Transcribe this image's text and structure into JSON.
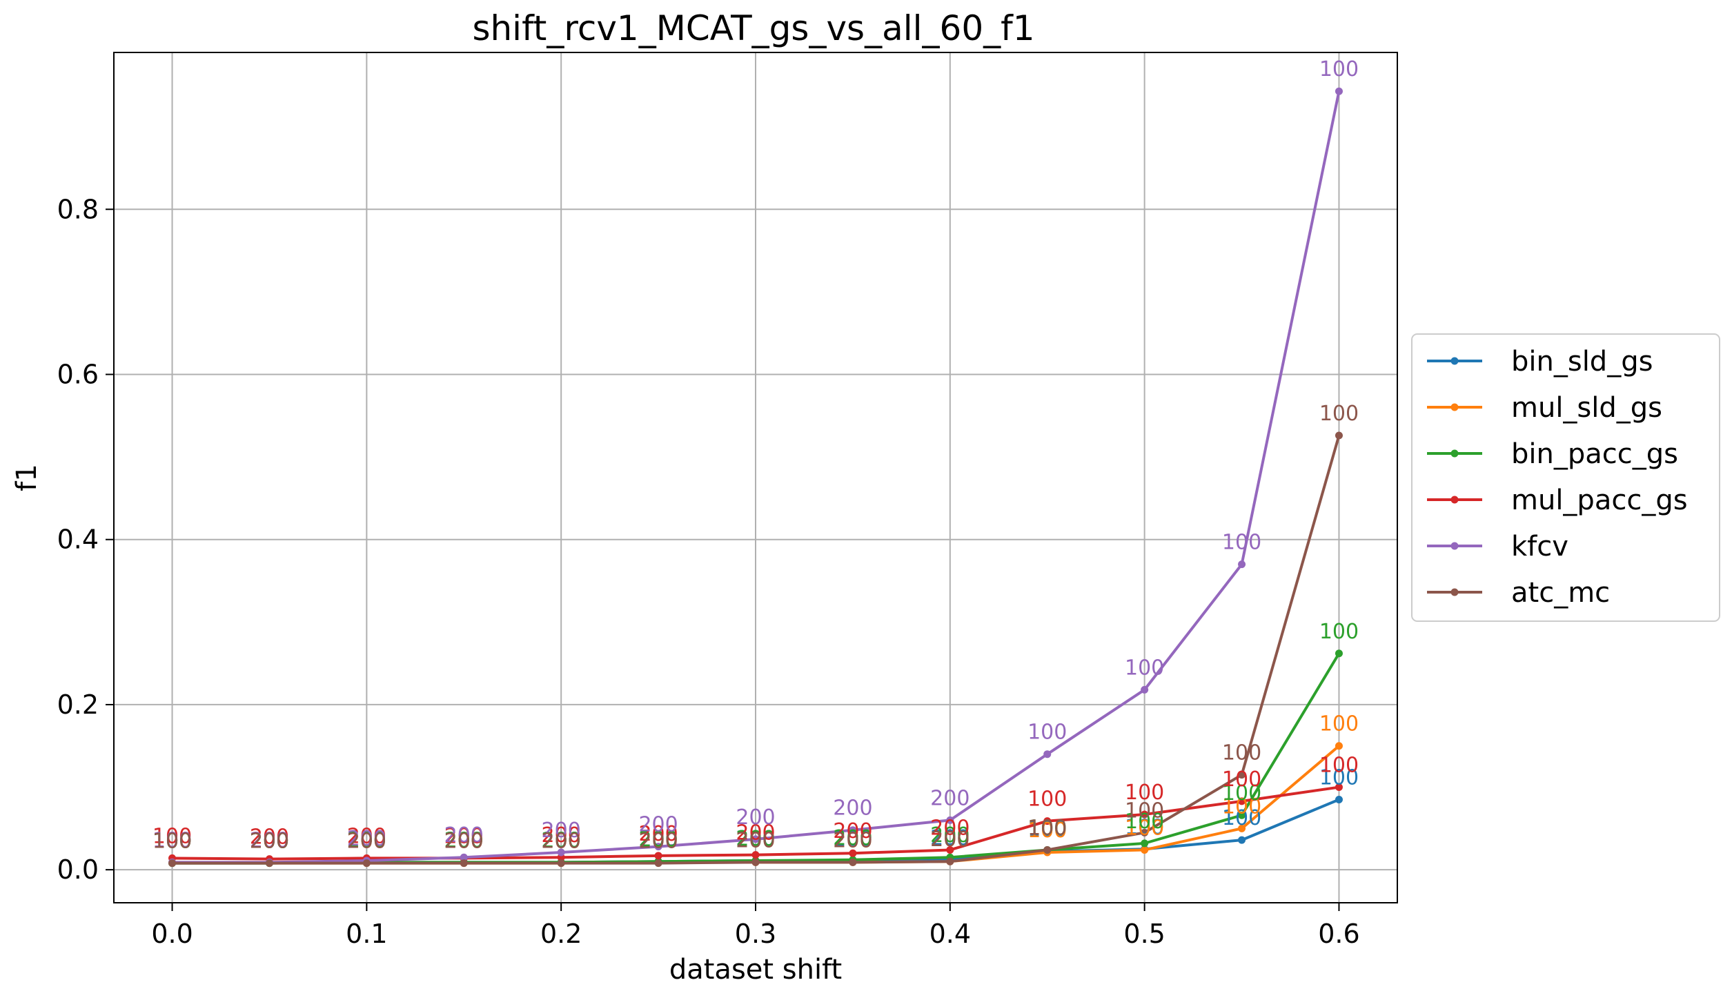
{
  "chart_data": {
    "type": "line",
    "title": "shift_rcv1_MCAT_gs_vs_all_60_f1",
    "xlabel": "dataset shift",
    "ylabel": "f1",
    "xlim": [
      -0.03,
      0.63
    ],
    "ylim": [
      -0.04,
      0.99
    ],
    "x_ticks": [
      "0.0",
      "0.1",
      "0.2",
      "0.3",
      "0.4",
      "0.5",
      "0.6"
    ],
    "y_ticks": [
      "0.0",
      "0.2",
      "0.4",
      "0.6",
      "0.8"
    ],
    "grid": true,
    "legend_position": "right, outside plot",
    "x": [
      0.0,
      0.05,
      0.1,
      0.15,
      0.2,
      0.25,
      0.3,
      0.35,
      0.4,
      0.45,
      0.5,
      0.55,
      0.6
    ],
    "series": [
      {
        "name": "bin_sld_gs",
        "color": "#1f77b4",
        "values": [
          0.008,
          0.008,
          0.009,
          0.009,
          0.009,
          0.01,
          0.011,
          0.011,
          0.012,
          0.022,
          0.025,
          0.036,
          0.085
        ],
        "labels": [
          "100",
          "200",
          "200",
          "200",
          "200",
          "200",
          "200",
          "200",
          "200",
          "100",
          "100",
          "100",
          "100"
        ]
      },
      {
        "name": "mul_sld_gs",
        "color": "#ff7f0e",
        "values": [
          0.008,
          0.008,
          0.008,
          0.008,
          0.008,
          0.009,
          0.009,
          0.009,
          0.01,
          0.021,
          0.024,
          0.05,
          0.15
        ],
        "labels": [
          "100",
          "200",
          "200",
          "200",
          "200",
          "200",
          "200",
          "200",
          "200",
          "100",
          "100",
          "100",
          "100"
        ]
      },
      {
        "name": "bin_pacc_gs",
        "color": "#2ca02c",
        "values": [
          0.008,
          0.008,
          0.009,
          0.009,
          0.009,
          0.01,
          0.011,
          0.012,
          0.015,
          0.024,
          0.032,
          0.066,
          0.262
        ],
        "labels": [
          "100",
          "200",
          "200",
          "200",
          "200",
          "200",
          "200",
          "200",
          "200",
          "100",
          "100",
          "100",
          "100"
        ]
      },
      {
        "name": "mul_pacc_gs",
        "color": "#d62728",
        "values": [
          0.014,
          0.013,
          0.014,
          0.014,
          0.015,
          0.017,
          0.018,
          0.02,
          0.024,
          0.059,
          0.067,
          0.083,
          0.1
        ],
        "labels": [
          "100",
          "200",
          "200",
          "200",
          "200",
          "200",
          "200",
          "200",
          "200",
          "100",
          "100",
          "100",
          "100"
        ]
      },
      {
        "name": "kfcv",
        "color": "#9467bd",
        "values": [
          0.009,
          0.009,
          0.011,
          0.015,
          0.021,
          0.028,
          0.037,
          0.048,
          0.06,
          0.14,
          0.218,
          0.37,
          0.943
        ],
        "labels": [
          "100",
          "200",
          "200",
          "200",
          "200",
          "200",
          "200",
          "200",
          "200",
          "100",
          "100",
          "100",
          "100"
        ]
      },
      {
        "name": "atc_mc",
        "color": "#8c564b",
        "values": [
          0.008,
          0.008,
          0.008,
          0.008,
          0.008,
          0.008,
          0.009,
          0.009,
          0.01,
          0.024,
          0.045,
          0.115,
          0.526
        ],
        "labels": [
          "100",
          "200",
          "200",
          "200",
          "200",
          "200",
          "200",
          "200",
          "200",
          "100",
          "100",
          "100",
          "100"
        ]
      }
    ]
  }
}
